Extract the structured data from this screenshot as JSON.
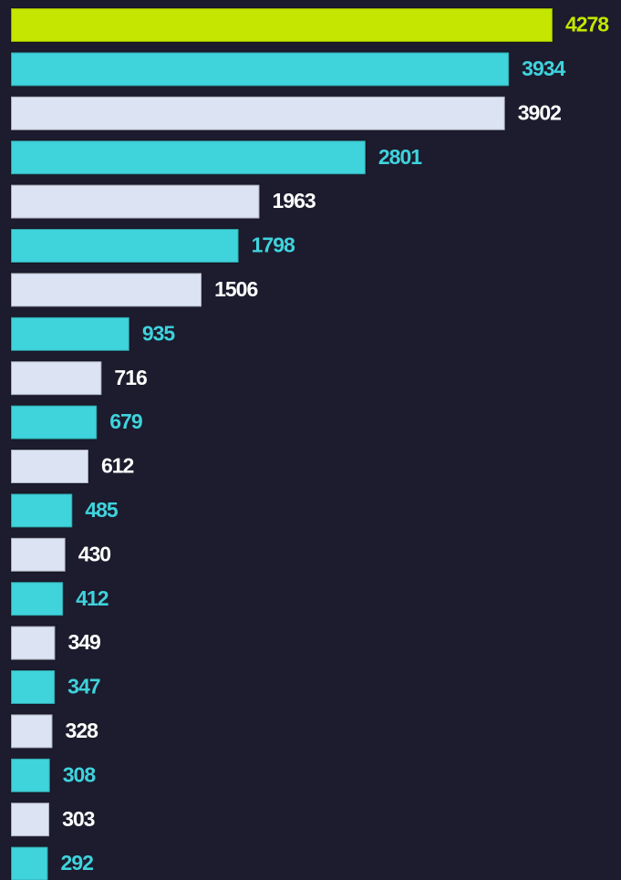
{
  "chart_data": {
    "type": "hbar",
    "categories": [
      null,
      null,
      null,
      null,
      null,
      null,
      null,
      null,
      null,
      null,
      null,
      null,
      null,
      null,
      null,
      null,
      null,
      null,
      null,
      null
    ],
    "values": [
      4278,
      3934,
      3902,
      2801,
      1963,
      1798,
      1506,
      935,
      716,
      679,
      612,
      485,
      430,
      412,
      349,
      347,
      328,
      308,
      303,
      292
    ],
    "colors": [
      "#c4e600",
      "#3fd3dc",
      "#dce3f3",
      "#3fd3dc",
      "#dce3f3",
      "#3fd3dc",
      "#dce3f3",
      "#3fd3dc",
      "#dce3f3",
      "#3fd3dc",
      "#dce3f3",
      "#3fd3dc",
      "#dce3f3",
      "#3fd3dc",
      "#dce3f3",
      "#3fd3dc",
      "#dce3f3",
      "#3fd3dc",
      "#dce3f3",
      "#3fd3dc"
    ],
    "xlim": [
      0,
      4300
    ]
  }
}
